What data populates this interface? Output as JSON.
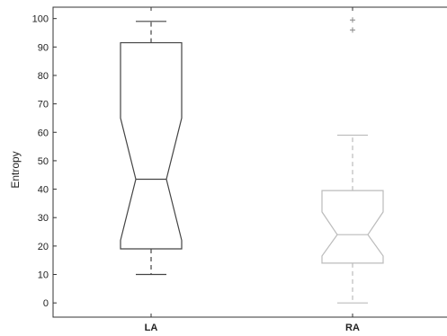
{
  "chart_data": {
    "type": "box",
    "title": "",
    "xlabel": "",
    "ylabel": "Entropy",
    "ylim": [
      -5,
      104
    ],
    "yticks": [
      0,
      10,
      20,
      30,
      40,
      50,
      60,
      70,
      80,
      90,
      100
    ],
    "grid": false,
    "notched": true,
    "categories": [
      "LA",
      "RA"
    ],
    "series": [
      {
        "category": "LA",
        "whisker_low": 10,
        "q1": 19,
        "median": 43.5,
        "q3": 91.5,
        "whisker_high": 99,
        "notch_low": 22,
        "notch_high": 65,
        "outliers": [],
        "color": "#444444"
      },
      {
        "category": "RA",
        "whisker_low": 0,
        "q1": 14,
        "median": 24,
        "q3": 39.5,
        "whisker_high": 59,
        "notch_low": 16.5,
        "notch_high": 32,
        "outliers": [
          96,
          99.5
        ],
        "color": "#bbbbbb"
      }
    ]
  }
}
